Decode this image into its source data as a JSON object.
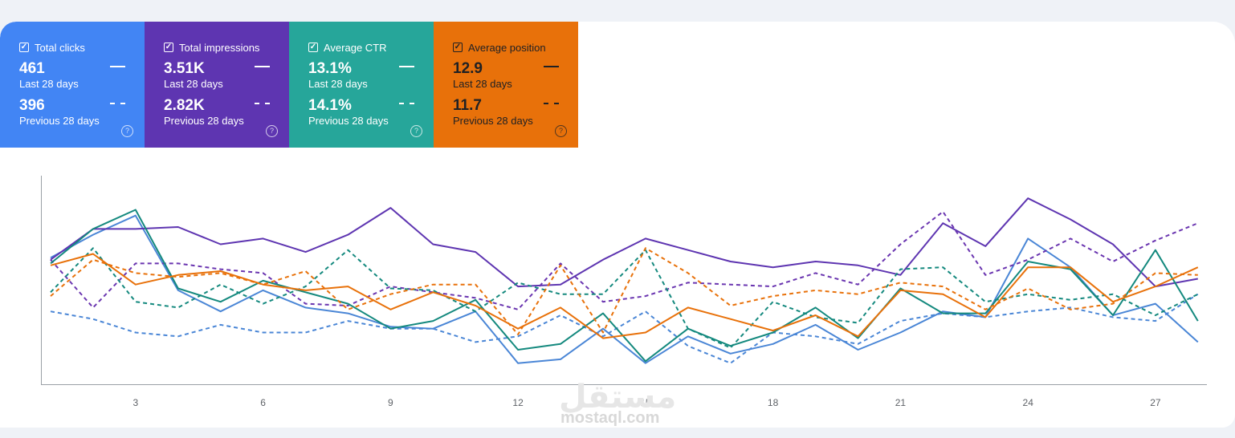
{
  "cards": [
    {
      "key": "clicks",
      "label": "Total clicks",
      "current_value": "461",
      "current_period": "Last 28 days",
      "previous_value": "396",
      "previous_period": "Previous 28 days",
      "color": "#4285f4",
      "checked": true
    },
    {
      "key": "impr",
      "label": "Total impressions",
      "current_value": "3.51K",
      "current_period": "Last 28 days",
      "previous_value": "2.82K",
      "previous_period": "Previous 28 days",
      "color": "#5e35b1",
      "checked": true
    },
    {
      "key": "ctr",
      "label": "Average CTR",
      "current_value": "13.1%",
      "current_period": "Last 28 days",
      "previous_value": "14.1%",
      "previous_period": "Previous 28 days",
      "color": "#26a69a",
      "checked": true
    },
    {
      "key": "pos",
      "label": "Average position",
      "current_value": "12.9",
      "current_period": "Last 28 days",
      "previous_value": "11.7",
      "previous_period": "Previous 28 days",
      "color": "#e8710a",
      "checked": true
    }
  ],
  "icons": {
    "checkbox": "check-icon",
    "help": "help-circle-icon",
    "help_glyph": "?"
  },
  "watermark": {
    "arabic": "مستقل",
    "latin": "mostaql.com"
  },
  "chart_data": {
    "type": "line",
    "x": [
      1,
      2,
      3,
      4,
      5,
      6,
      7,
      8,
      9,
      10,
      11,
      12,
      13,
      14,
      15,
      16,
      17,
      18,
      19,
      20,
      21,
      22,
      23,
      24,
      25,
      26,
      27,
      28
    ],
    "x_ticks": [
      3,
      6,
      9,
      12,
      15,
      18,
      21,
      24,
      27
    ],
    "y_range": [
      0,
      100
    ],
    "grid": false,
    "legend": "metric cards above chart",
    "series": [
      {
        "metric": "clicks",
        "period": "current",
        "color": "#4a86d6",
        "dash": false,
        "values": [
          66,
          78,
          88,
          49,
          38,
          49,
          40,
          37,
          30,
          29,
          38,
          11,
          13,
          29,
          11,
          25,
          16,
          21,
          31,
          18,
          27,
          38,
          35,
          76,
          61,
          36,
          42,
          22
        ]
      },
      {
        "metric": "clicks",
        "period": "previous",
        "color": "#4a86d6",
        "dash": true,
        "values": [
          38,
          34,
          27,
          25,
          31,
          27,
          27,
          33,
          29,
          29,
          22,
          25,
          36,
          25,
          38,
          20,
          11,
          27,
          25,
          21,
          33,
          37,
          35,
          38,
          40,
          35,
          33,
          47
        ]
      },
      {
        "metric": "impressions",
        "period": "current",
        "color": "#5e35b1",
        "dash": false,
        "values": [
          65,
          81,
          81,
          82,
          73,
          76,
          69,
          78,
          92,
          73,
          69,
          51,
          52,
          65,
          76,
          70,
          64,
          61,
          64,
          62,
          57,
          84,
          72,
          97,
          86,
          73,
          51,
          55
        ]
      },
      {
        "metric": "impressions",
        "period": "previous",
        "color": "#6a35b0",
        "dash": true,
        "values": [
          65,
          40,
          63,
          63,
          60,
          58,
          42,
          41,
          51,
          48,
          45,
          39,
          63,
          43,
          46,
          53,
          52,
          51,
          58,
          52,
          73,
          90,
          57,
          65,
          76,
          64,
          75,
          84
        ]
      },
      {
        "metric": "ctr",
        "period": "current",
        "color": "#14897e",
        "dash": false,
        "values": [
          63,
          81,
          91,
          50,
          43,
          54,
          48,
          42,
          29,
          33,
          44,
          18,
          21,
          37,
          12,
          29,
          20,
          27,
          40,
          24,
          50,
          37,
          37,
          64,
          60,
          36,
          70,
          33
        ]
      },
      {
        "metric": "ctr",
        "period": "previous",
        "color": "#14897e",
        "dash": true,
        "values": [
          48,
          71,
          43,
          40,
          52,
          42,
          51,
          70,
          50,
          49,
          38,
          53,
          47,
          47,
          70,
          29,
          19,
          43,
          35,
          32,
          60,
          61,
          43,
          47,
          44,
          47,
          36,
          47
        ]
      },
      {
        "metric": "position",
        "period": "current",
        "color": "#e8710a",
        "dash": false,
        "values": [
          62,
          68,
          52,
          57,
          59,
          52,
          49,
          51,
          39,
          48,
          41,
          29,
          40,
          24,
          27,
          40,
          34,
          28,
          36,
          25,
          49,
          47,
          35,
          61,
          61,
          43,
          51,
          61
        ]
      },
      {
        "metric": "position",
        "period": "previous",
        "color": "#e8710a",
        "dash": true,
        "values": [
          46,
          65,
          58,
          56,
          58,
          52,
          59,
          39,
          47,
          52,
          52,
          26,
          62,
          27,
          71,
          58,
          41,
          46,
          49,
          47,
          53,
          51,
          39,
          50,
          39,
          42,
          58,
          57
        ]
      }
    ]
  }
}
